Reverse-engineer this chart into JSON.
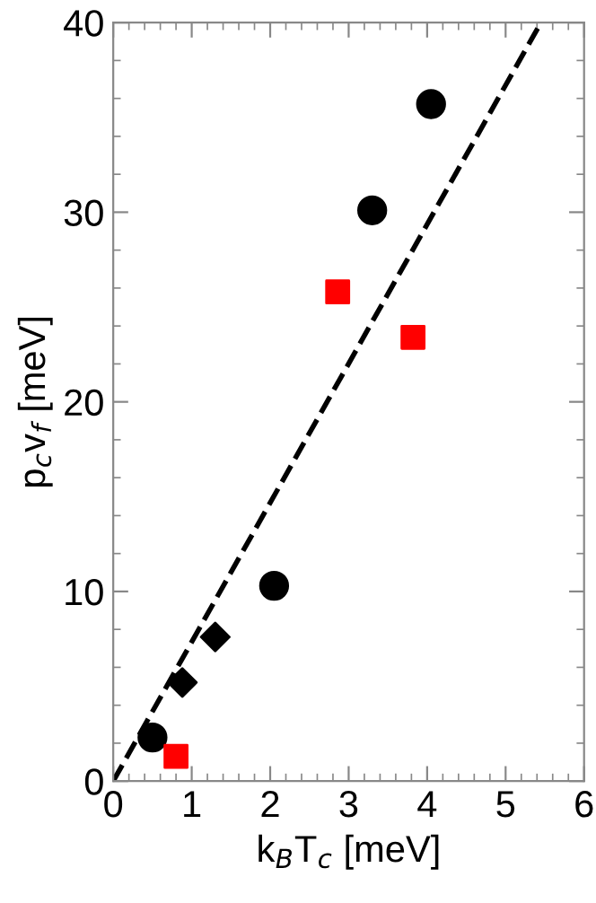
{
  "chart_data": {
    "type": "scatter",
    "xlabel": "k$_{B}$T$_{c}$ [meV]",
    "ylabel": "p$_{c}$v$_{f}$ [meV]",
    "xlim": [
      0,
      6
    ],
    "ylim": [
      0,
      40
    ],
    "xticks": [
      0,
      1,
      2,
      3,
      4,
      5,
      6
    ],
    "yticks": [
      0,
      10,
      20,
      30,
      40
    ],
    "grid": false,
    "legend": false,
    "series": [
      {
        "marker": "circle",
        "color": "#000000",
        "x": [
          0.5,
          2.05,
          3.3,
          4.05
        ],
        "values": [
          2.3,
          10.3,
          30.1,
          35.7
        ]
      },
      {
        "marker": "square",
        "color": "#ff0000",
        "x": [
          0.8,
          2.86,
          3.82
        ],
        "values": [
          1.3,
          25.8,
          23.4
        ]
      },
      {
        "marker": "diamond",
        "color": "#000000",
        "x": [
          0.88,
          1.3
        ],
        "values": [
          5.2,
          7.6
        ]
      },
      {
        "type": "line",
        "marker": "none",
        "line_style": "dashed",
        "color": "#000000",
        "x": [
          0,
          5.45
        ],
        "values": [
          0,
          40
        ]
      }
    ]
  }
}
